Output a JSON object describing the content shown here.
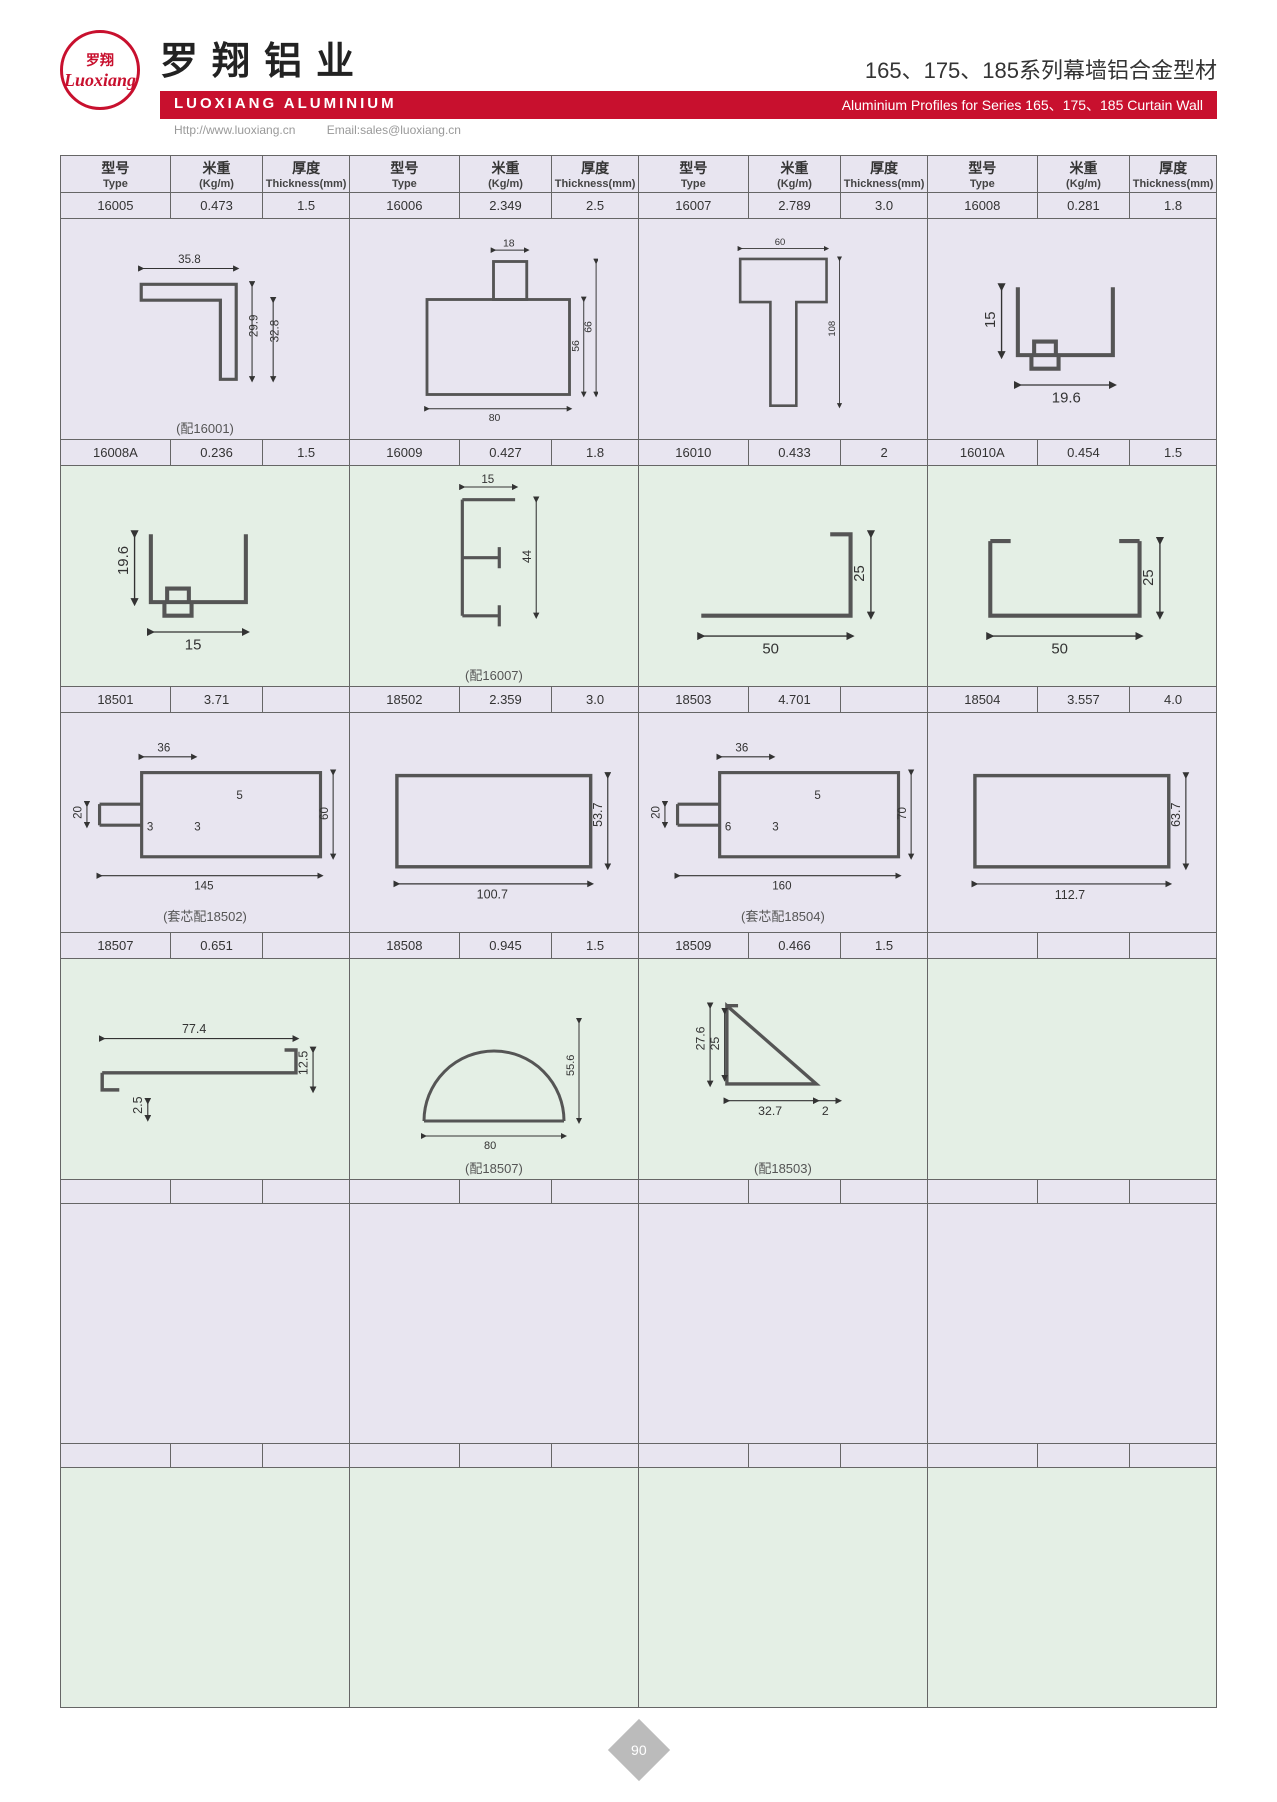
{
  "header": {
    "logo_cn": "罗翔",
    "logo_en": "Luoxiang",
    "brand_cn": "罗翔铝业",
    "title_cn": "165、175、185系列幕墙铝合金型材",
    "brand_en": "LUOXIANG ALUMINIUM",
    "title_en": "Aluminium Profiles for Series 165、175、185 Curtain Wall",
    "url": "Http://www.luoxiang.cn",
    "email": "Email:sales@luoxiang.cn"
  },
  "columns": {
    "type_cn": "型号",
    "type_en": "Type",
    "weight_cn": "米重",
    "weight_en": "(Kg/m)",
    "thick_cn": "厚度",
    "thick_en": "Thickness(mm)"
  },
  "rows": [
    {
      "bg": "bg-a",
      "cells": [
        {
          "type": "16005",
          "w": "0.473",
          "t": "1.5",
          "note": "(配16001)",
          "dims": [
            "35.8",
            "29.9",
            "32.8"
          ]
        },
        {
          "type": "16006",
          "w": "2.349",
          "t": "2.5",
          "note": "",
          "dims": [
            "18",
            "80",
            "56",
            "66"
          ]
        },
        {
          "type": "16007",
          "w": "2.789",
          "t": "3.0",
          "note": "",
          "dims": [
            "60",
            "108"
          ]
        },
        {
          "type": "16008",
          "w": "0.281",
          "t": "1.8",
          "note": "",
          "dims": [
            "15",
            "19.6"
          ]
        }
      ]
    },
    {
      "bg": "bg-b",
      "cells": [
        {
          "type": "16008A",
          "w": "0.236",
          "t": "1.5",
          "note": "",
          "dims": [
            "19.6",
            "15"
          ]
        },
        {
          "type": "16009",
          "w": "0.427",
          "t": "1.8",
          "note": "(配16007)",
          "dims": [
            "15",
            "44"
          ]
        },
        {
          "type": "16010",
          "w": "0.433",
          "t": "2",
          "note": "",
          "dims": [
            "50",
            "25"
          ]
        },
        {
          "type": "16010A",
          "w": "0.454",
          "t": "1.5",
          "note": "",
          "dims": [
            "50",
            "25"
          ]
        }
      ]
    },
    {
      "bg": "bg-a",
      "cells": [
        {
          "type": "18501",
          "w": "3.71",
          "t": "",
          "note": "(套芯配18502)",
          "dims": [
            "36",
            "20",
            "3",
            "3",
            "5",
            "60",
            "145"
          ]
        },
        {
          "type": "18502",
          "w": "2.359",
          "t": "3.0",
          "note": "",
          "dims": [
            "100.7",
            "53.7"
          ]
        },
        {
          "type": "18503",
          "w": "4.701",
          "t": "",
          "note": "(套芯配18504)",
          "dims": [
            "36",
            "20",
            "6",
            "3",
            "5",
            "70",
            "160"
          ]
        },
        {
          "type": "18504",
          "w": "3.557",
          "t": "4.0",
          "note": "",
          "dims": [
            "112.7",
            "63.7"
          ]
        }
      ]
    },
    {
      "bg": "bg-b",
      "cells": [
        {
          "type": "18507",
          "w": "0.651",
          "t": "",
          "note": "",
          "dims": [
            "77.4",
            "12.5",
            "2.5"
          ]
        },
        {
          "type": "18508",
          "w": "0.945",
          "t": "1.5",
          "note": "(配18507)",
          "dims": [
            "80",
            "55.6"
          ]
        },
        {
          "type": "18509",
          "w": "0.466",
          "t": "1.5",
          "note": "(配18503)",
          "dims": [
            "27.6",
            "25",
            "32.7",
            "2"
          ]
        },
        {
          "type": "",
          "w": "",
          "t": "",
          "note": "",
          "dims": []
        }
      ]
    }
  ],
  "page": "90",
  "colors": {
    "red": "#c8102e",
    "bg_a": "#e8e5f0",
    "bg_b": "#e4efe5",
    "border": "#666666"
  }
}
